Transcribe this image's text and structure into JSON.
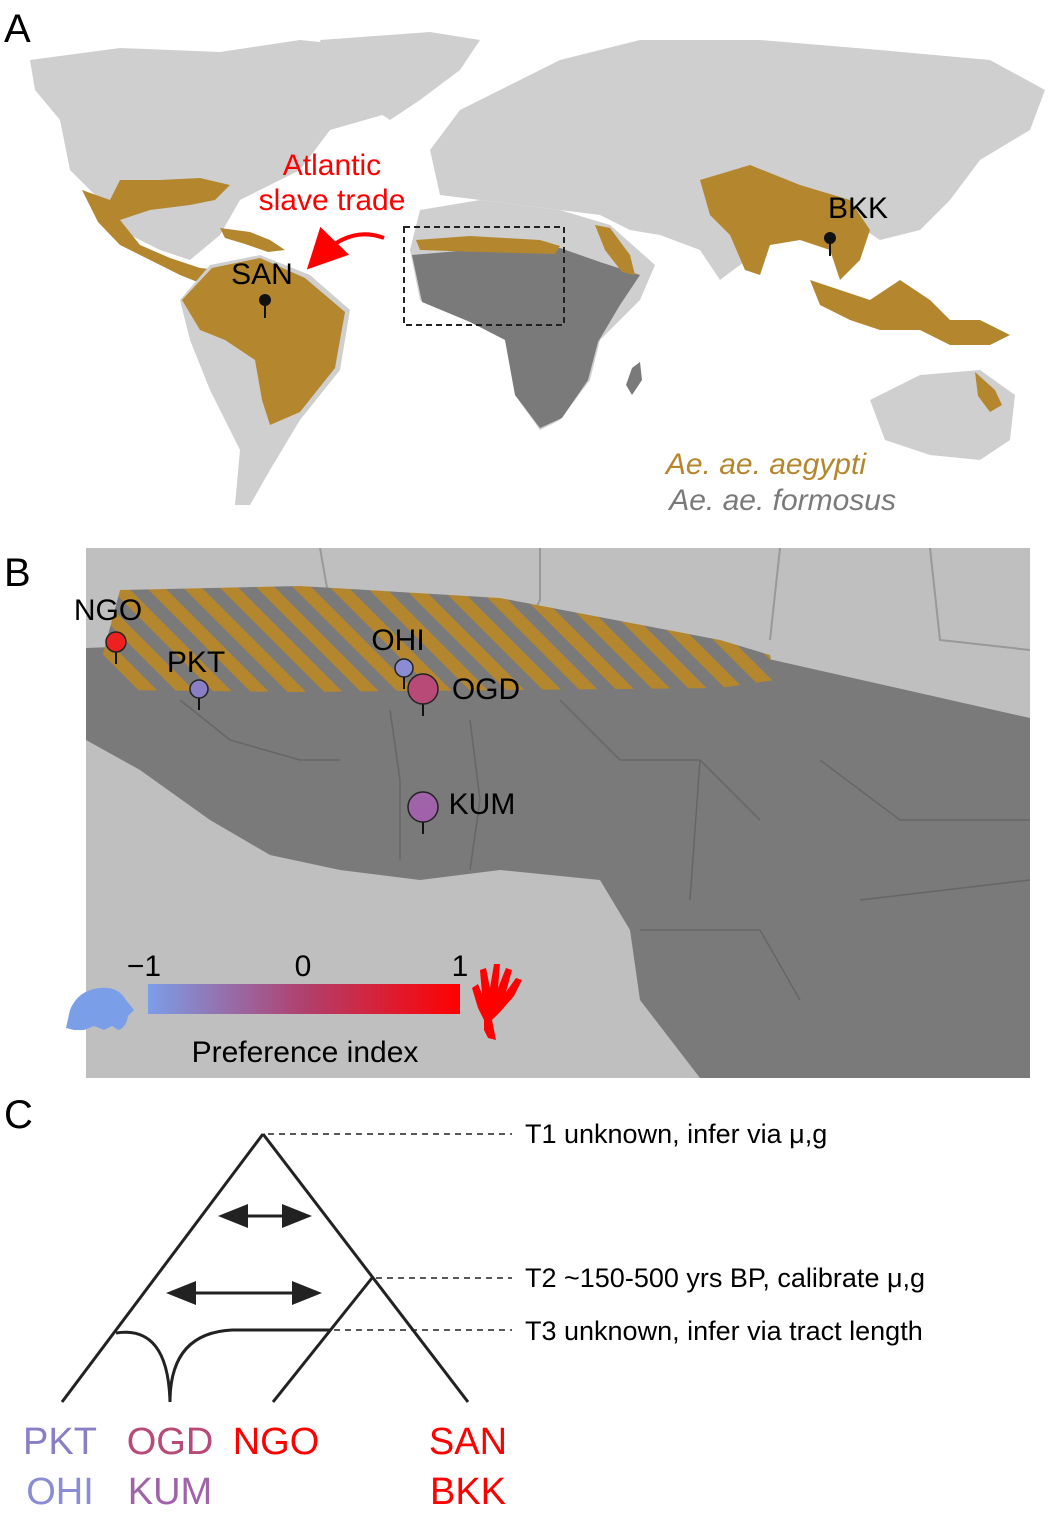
{
  "colors": {
    "aegypti": "#b4872f",
    "formosus": "#7a7a7a",
    "land_light": "#cfcfcf",
    "annotation_red": "#ff0000",
    "pref_low": "#7b9ee8",
    "pref_high": "#ff0000",
    "pkt": "#8a7ec4",
    "ohi": "#8a8cd4",
    "ogd": "#b84a78",
    "kum": "#a062a8",
    "ngo": "#ee2020"
  },
  "panel_a": {
    "letter": "A",
    "annotation_line1": "Atlantic",
    "annotation_line2": "slave trade",
    "sites": [
      {
        "code": "SAN"
      },
      {
        "code": "BKK"
      }
    ],
    "legend_aegypti": "Ae. ae. aegypti",
    "legend_formosus": "Ae. ae. formosus"
  },
  "panel_b": {
    "letter": "B",
    "sites": [
      {
        "code": "NGO",
        "preference": 1.0
      },
      {
        "code": "PKT",
        "preference": -0.4
      },
      {
        "code": "OHI",
        "preference": -0.7
      },
      {
        "code": "OGD",
        "preference": 0.45
      },
      {
        "code": "KUM",
        "preference": 0.1
      }
    ],
    "scale": {
      "min_label": "−1",
      "mid_label": "0",
      "max_label": "1",
      "title": "Preference index",
      "low_icon": "guinea-pig-icon",
      "high_icon": "human-hand-icon"
    }
  },
  "panel_c": {
    "letter": "C",
    "times": [
      {
        "label": "T1 unknown, infer via μ,g"
      },
      {
        "label": "T2 ~150-500 yrs BP, calibrate μ,g"
      },
      {
        "label": "T3 unknown, infer via tract length"
      }
    ],
    "leaves": [
      {
        "line1": "PKT",
        "line2": "OHI"
      },
      {
        "line1": "OGD",
        "line2": "KUM"
      },
      {
        "line1": "NGO",
        "line2": ""
      },
      {
        "line1": "SAN",
        "line2": "BKK"
      }
    ]
  }
}
